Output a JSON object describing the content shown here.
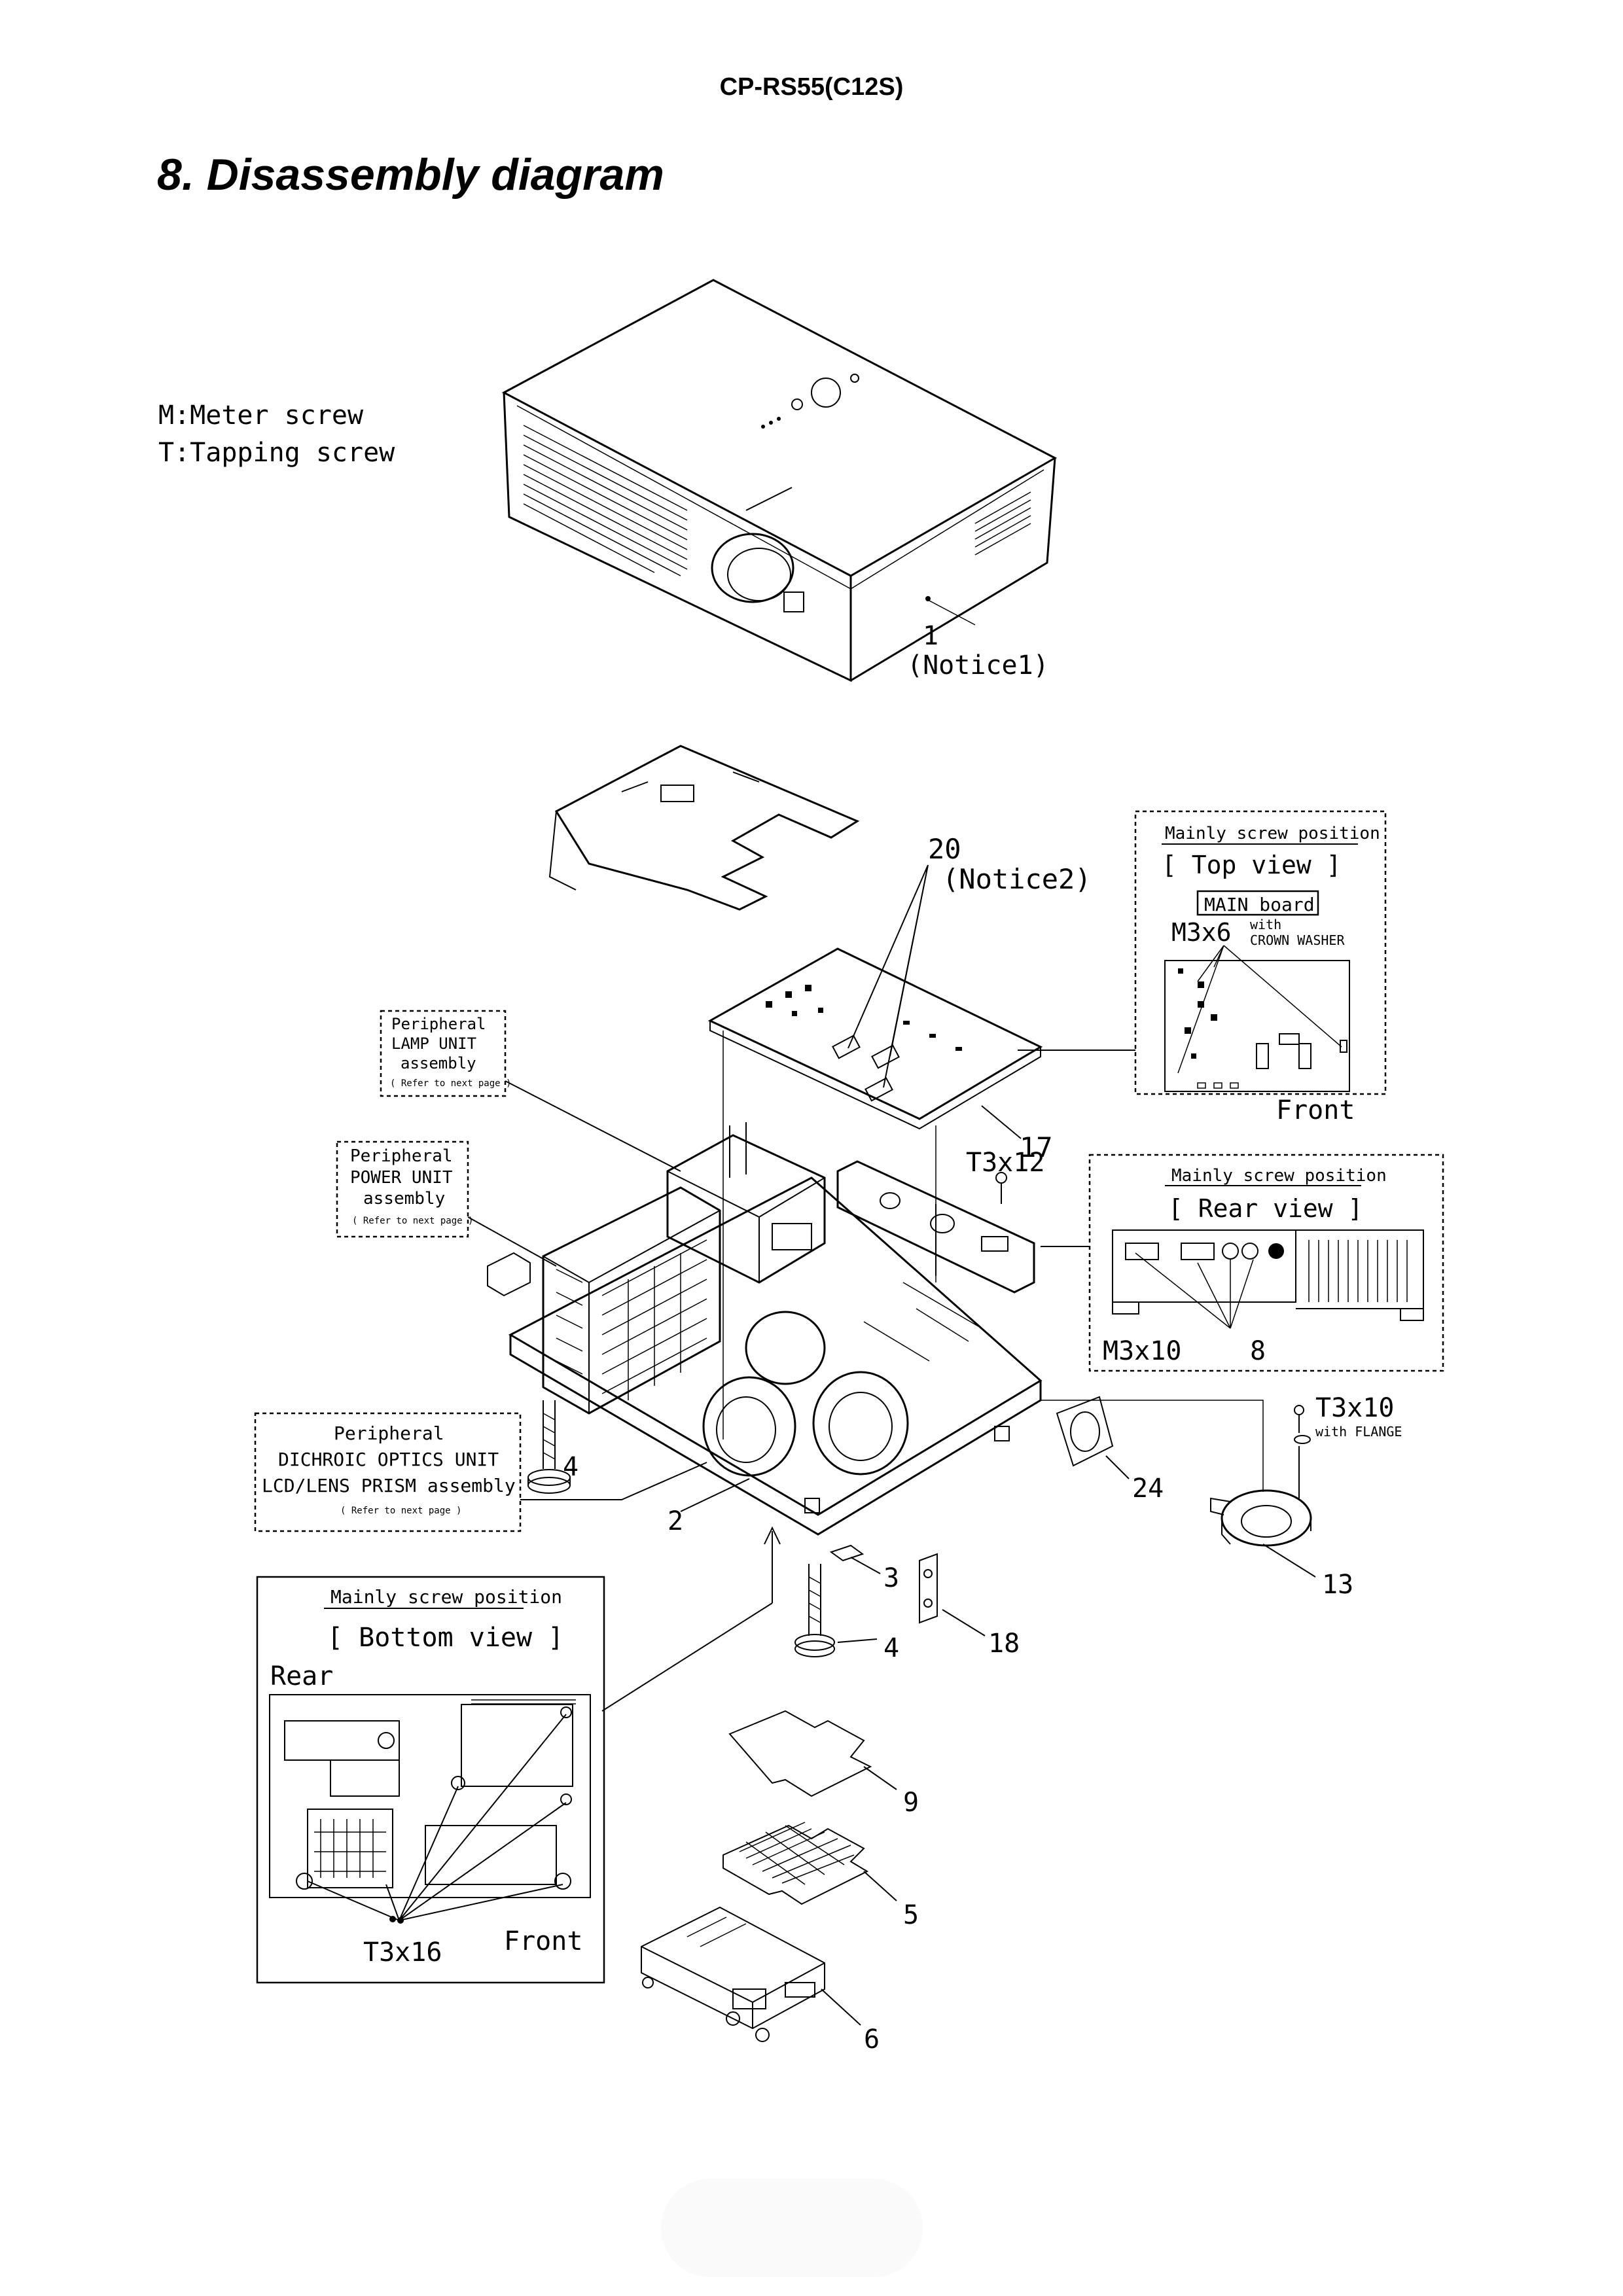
{
  "header": {
    "model": "CP-RS55(C12S)"
  },
  "section_title": "8. Disassembly diagram",
  "legend": {
    "meter": "M:Meter screw",
    "tapping": "T:Tapping screw"
  },
  "callouts": {
    "c1": "1",
    "notice1": "(Notice1)",
    "c20": "20",
    "notice2": "(Notice2)",
    "c17": "17",
    "t3x12": "T3x12",
    "c4a": "4",
    "c4b": "4",
    "c2": "2",
    "c3": "3",
    "c18": "18",
    "c24": "24",
    "t3x10": "T3x10",
    "flange": "with FLANGE",
    "c13": "13",
    "c9": "9",
    "c5": "5",
    "c6": "6"
  },
  "top_view_box": {
    "title": "Mainly screw position",
    "view": "[ Top view ]",
    "board": "MAIN board",
    "screw": "M3x6",
    "washer1": "with",
    "washer2": "CROWN WASHER",
    "front": "Front"
  },
  "rear_view_box": {
    "title": "Mainly screw position",
    "view": "[ Rear view ]",
    "screw": "M3x10",
    "callout": "8"
  },
  "bottom_view_box": {
    "title": "Mainly screw position",
    "view": "[ Bottom view ]",
    "rear": "Rear",
    "front": "Front",
    "screw": "T3x16"
  },
  "lamp_box": {
    "l1": "Peripheral",
    "l2": "LAMP UNIT",
    "l3": "assembly",
    "l4": "( Refer to next page )"
  },
  "power_box": {
    "l1": "Peripheral",
    "l2": "POWER UNIT",
    "l3": "assembly",
    "l4": "( Refer to next page )"
  },
  "optics_box": {
    "l1": "Peripheral",
    "l2": "DICHROIC OPTICS UNIT",
    "l3": "LCD/LENS PRISM assembly",
    "l4": "( Refer to next page )"
  }
}
